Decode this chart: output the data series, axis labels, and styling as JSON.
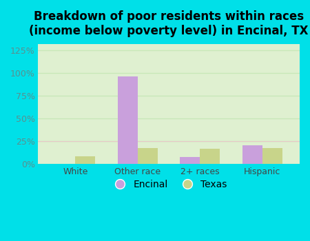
{
  "categories": [
    "White",
    "Other race",
    "2+ races",
    "Hispanic"
  ],
  "encinal_values": [
    0.0,
    96.0,
    8.0,
    21.0
  ],
  "texas_values": [
    9.0,
    18.0,
    17.0,
    18.0
  ],
  "encinal_color": "#c9a0dc",
  "texas_color": "#c8d48a",
  "title": "Breakdown of poor residents within races\n(income below poverty level) in Encinal, TX",
  "title_fontsize": 12,
  "title_fontweight": "bold",
  "ylabel_ticks": [
    0,
    25,
    50,
    75,
    100,
    125
  ],
  "ylim": [
    0,
    132
  ],
  "background_outer": "#00e0e8",
  "background_inner_top": "#f5fffa",
  "background_inner": "#dff0d0",
  "grid_color": "#c8e8b8",
  "ytick_color": "#5a9090",
  "xtick_color": "#444444",
  "legend_encinal": "Encinal",
  "legend_texas": "Texas",
  "bar_width": 0.32
}
